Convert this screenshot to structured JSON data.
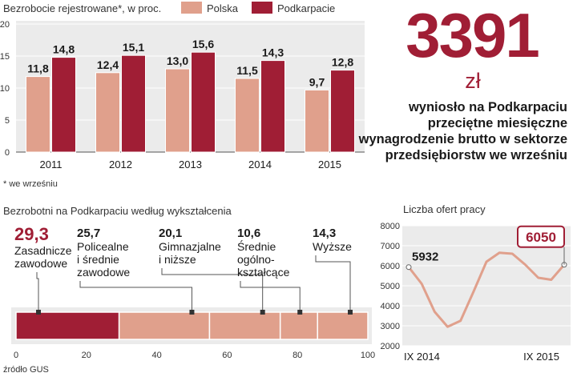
{
  "colors": {
    "polska": "#e0a08c",
    "podkarpacie": "#a01e35",
    "panel": "#ebebeb",
    "line": "#e0a08c"
  },
  "chart_data": [
    {
      "type": "bar",
      "title": "Bezrobocie rejestrowane*, w proc.",
      "categories": [
        "2011",
        "2012",
        "2013",
        "2014",
        "2015"
      ],
      "series": [
        {
          "name": "Polska",
          "values": [
            11.8,
            12.4,
            13.0,
            11.5,
            9.7
          ],
          "labels": [
            "11,8",
            "12,4",
            "13,0",
            "11,5",
            "9,7"
          ]
        },
        {
          "name": "Podkarpacie",
          "values": [
            14.8,
            15.1,
            15.6,
            14.3,
            12.8
          ],
          "labels": [
            "14,8",
            "15,1",
            "15,6",
            "14,3",
            "12,8"
          ]
        }
      ],
      "ylim": [
        0,
        20
      ],
      "yticks": [
        0,
        5,
        10,
        15,
        20
      ],
      "footnote": "* we wrześniu"
    },
    {
      "type": "bar",
      "title": "Bezrobotni na Podkarpaciu według wykształcenia",
      "orientation": "stacked-horizontal",
      "segments": [
        {
          "value": 29.3,
          "label": "29,3",
          "name": [
            "Zasadnicze",
            "zawodowe"
          ]
        },
        {
          "value": 25.7,
          "label": "25,7",
          "name": [
            "Policealne",
            "i średnie",
            "zawodowe"
          ]
        },
        {
          "value": 20.1,
          "label": "20,1",
          "name": [
            "Gimnazjalne",
            "i niższe"
          ]
        },
        {
          "value": 10.6,
          "label": "10,6",
          "name": [
            "Średnie",
            "ogólno-",
            "kształcące"
          ]
        },
        {
          "value": 14.3,
          "label": "14,3",
          "name": [
            "Wyższe"
          ]
        }
      ],
      "xlim": [
        0,
        100
      ],
      "xticks": [
        0,
        20,
        40,
        60,
        80,
        100
      ]
    },
    {
      "type": "line",
      "title": "Liczba ofert pracy",
      "x": [
        "IX 2014",
        "X 2014",
        "XI 2014",
        "XII 2014",
        "I 2015",
        "II 2015",
        "III 2015",
        "IV 2015",
        "V 2015",
        "VI 2015",
        "VII 2015",
        "VIII 2015",
        "IX 2015"
      ],
      "values": [
        5932,
        5100,
        3700,
        2950,
        3250,
        4700,
        6200,
        6650,
        6600,
        6050,
        5400,
        5300,
        6050
      ],
      "xlabels_shown": [
        "IX 2014",
        "IX 2015"
      ],
      "callouts": [
        {
          "index": 0,
          "label": "5932"
        },
        {
          "index": 12,
          "label": "6050"
        }
      ],
      "ylim": [
        2000,
        8000
      ],
      "yticks": [
        2000,
        3000,
        4000,
        5000,
        6000,
        7000,
        8000
      ]
    }
  ],
  "headline": {
    "value": "3391",
    "unit": "zł",
    "description": "wyniosło na Podkarpaciu przeciętne miesięczne wynagrodzenie brutto w sektorze przedsiębiorstw we wrześniu"
  },
  "footnote": "* we wrześniu",
  "source": "źródło GUS"
}
